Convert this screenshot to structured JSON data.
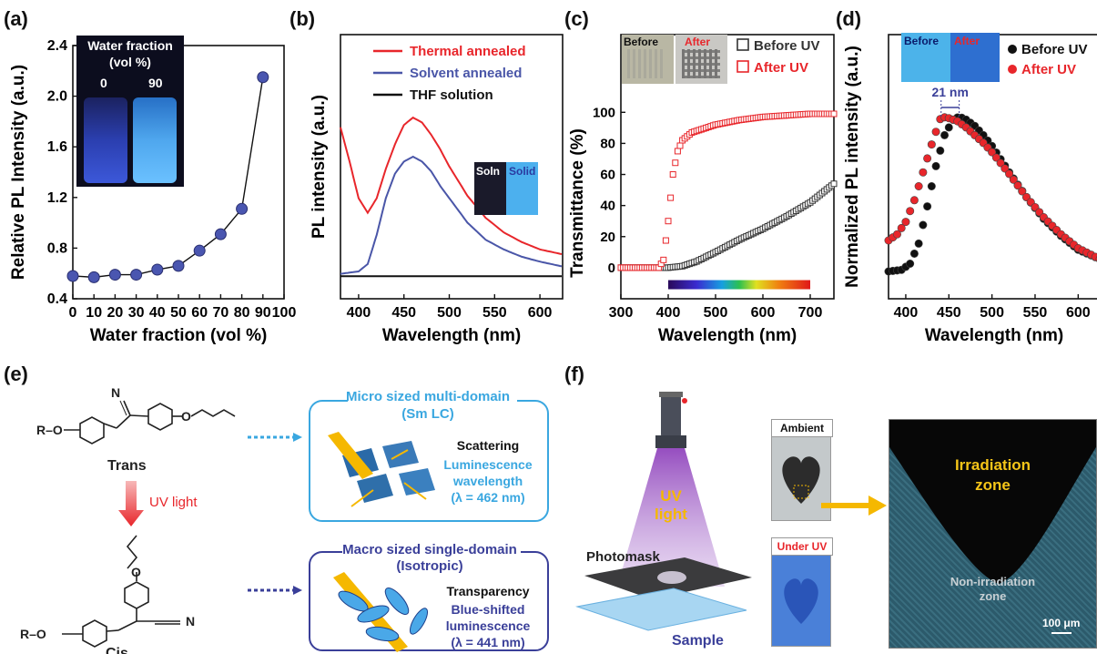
{
  "panel_labels": [
    "(a)",
    "(b)",
    "(c)",
    "(d)",
    "(e)",
    "(f)"
  ],
  "panel_a": {
    "inset_title_1": "Water fraction",
    "inset_title_2": "(vol %)",
    "inset_val_1": "0",
    "inset_val_2": "90"
  },
  "panel_b": {
    "inset_soln": "Soln",
    "inset_solid": "Solid"
  },
  "panel_c": {
    "inset_before": "Before",
    "inset_after": "After"
  },
  "panel_d": {
    "inset_before": "Before",
    "inset_after": "After",
    "annotation": "21 nm"
  },
  "panel_e": {
    "trans_label": "Trans",
    "cis_label": "Cis",
    "uv_label": "UV light",
    "ro_top": "R–O",
    "ro_bottom": "R–O",
    "n_top": "N",
    "n_bottom": "N",
    "o_top": "O",
    "o_bottom": "O",
    "micro_title_1": "Micro sized multi-domain",
    "micro_title_2": "(Sm LC)",
    "micro_prop": "Scattering",
    "micro_lum_1": "Luminescence",
    "micro_lum_2": "wavelength",
    "micro_lum_3": "(λ = 462 nm)",
    "macro_title_1": "Macro sized single-domain",
    "macro_title_2": "(Isotropic)",
    "macro_prop": "Transparency",
    "macro_lum_1": "Blue-shifted",
    "macro_lum_2": "luminescence",
    "macro_lum_3": "(λ = 441 nm)"
  },
  "panel_f": {
    "uv_1": "UV",
    "uv_2": "light",
    "photomask": "Photomask",
    "sample": "Sample",
    "ambient": "Ambient",
    "under_uv": "Under UV",
    "irr_1": "Irradiation",
    "irr_2": "zone",
    "non_irr_1": "Non-irradiation",
    "non_irr_2": "zone",
    "scale": "100 μm"
  },
  "colors": {
    "marker_blue": "#4a56b0",
    "red": "#e8262b",
    "blue_line": "#4a56a8",
    "cyan": "#3aa7e0",
    "navy": "#3a3f99",
    "arrow_yellow": "#f5b800"
  },
  "chart_data": [
    {
      "type": "scatter",
      "panel": "a",
      "xlabel": "Water fraction (vol %)",
      "ylabel": "Relative PL Intensity (a.u.)",
      "xlim": [
        0,
        100
      ],
      "ylim": [
        0.4,
        2.4
      ],
      "xticks": [
        0,
        10,
        20,
        30,
        40,
        50,
        60,
        70,
        80,
        90,
        100
      ],
      "yticks": [
        0.4,
        0.8,
        1.2,
        1.6,
        2.0,
        2.4
      ],
      "series": [
        {
          "x": [
            0,
            10,
            20,
            30,
            40,
            50,
            60,
            70,
            80,
            90
          ],
          "y": [
            0.58,
            0.57,
            0.59,
            0.59,
            0.63,
            0.66,
            0.78,
            0.91,
            1.11,
            2.15
          ]
        }
      ]
    },
    {
      "type": "line",
      "panel": "b",
      "xlabel": "Wavelength (nm)",
      "ylabel": "PL intensity (a.u.)",
      "xlim": [
        380,
        625
      ],
      "xticks": [
        400,
        450,
        500,
        550,
        600
      ],
      "series": [
        {
          "name": "Thermal annealed",
          "color": "#e8262b",
          "x": [
            380,
            390,
            400,
            410,
            420,
            430,
            440,
            450,
            460,
            470,
            480,
            490,
            500,
            520,
            540,
            560,
            580,
            600,
            625
          ],
          "y": [
            0.62,
            0.48,
            0.33,
            0.27,
            0.33,
            0.45,
            0.55,
            0.63,
            0.66,
            0.64,
            0.59,
            0.53,
            0.46,
            0.34,
            0.25,
            0.19,
            0.15,
            0.12,
            0.1
          ]
        },
        {
          "name": "Solvent annealed",
          "color": "#4a56a8",
          "x": [
            380,
            400,
            410,
            420,
            430,
            440,
            450,
            460,
            470,
            480,
            490,
            500,
            520,
            540,
            560,
            580,
            600,
            625
          ],
          "y": [
            0.02,
            0.03,
            0.06,
            0.18,
            0.33,
            0.43,
            0.48,
            0.5,
            0.48,
            0.44,
            0.38,
            0.33,
            0.23,
            0.16,
            0.12,
            0.09,
            0.07,
            0.05
          ]
        },
        {
          "name": "THF solution",
          "color": "#111111",
          "x": [
            380,
            625
          ],
          "y": [
            0.01,
            0.01
          ]
        }
      ]
    },
    {
      "type": "scatter",
      "panel": "c",
      "xlabel": "Wavelength (nm)",
      "ylabel": "Transmittance (%)",
      "xlim": [
        300,
        750
      ],
      "ylim": [
        -20,
        150
      ],
      "xticks": [
        300,
        400,
        500,
        600,
        700
      ],
      "yticks": [
        0,
        20,
        40,
        60,
        80,
        100
      ],
      "series": [
        {
          "name": "Before UV",
          "color": "#333333",
          "x": [
            300,
            350,
            400,
            430,
            460,
            500,
            550,
            600,
            650,
            700,
            750
          ],
          "y": [
            0,
            0,
            0,
            1,
            4,
            10,
            18,
            25,
            33,
            42,
            54
          ]
        },
        {
          "name": "After UV",
          "color": "#e8262b",
          "x": [
            300,
            350,
            380,
            390,
            400,
            410,
            420,
            430,
            450,
            500,
            550,
            600,
            650,
            700,
            750
          ],
          "y": [
            0,
            0,
            0,
            5,
            30,
            60,
            75,
            82,
            87,
            92,
            95,
            97,
            98,
            99,
            99
          ]
        }
      ]
    },
    {
      "type": "scatter",
      "panel": "d",
      "xlabel": "Wavelength (nm)",
      "ylabel": "Normalized PL intensity (a.u.)",
      "xlim": [
        380,
        625
      ],
      "ylim": [
        -0.05,
        1.05
      ],
      "xticks": [
        400,
        450,
        500,
        550,
        600
      ],
      "series": [
        {
          "name": "Before UV",
          "color": "#111111",
          "x": [
            380,
            395,
            405,
            415,
            425,
            435,
            445,
            455,
            462,
            470,
            480,
            490,
            500,
            520,
            540,
            560,
            580,
            600,
            625
          ],
          "y": [
            0.0,
            0.01,
            0.05,
            0.18,
            0.42,
            0.68,
            0.88,
            0.98,
            1.0,
            0.98,
            0.94,
            0.88,
            0.81,
            0.64,
            0.48,
            0.34,
            0.23,
            0.14,
            0.08
          ]
        },
        {
          "name": "After UV",
          "color": "#e8262b",
          "x": [
            380,
            390,
            400,
            410,
            420,
            430,
            441,
            450,
            460,
            470,
            480,
            490,
            500,
            520,
            540,
            560,
            580,
            600,
            625
          ],
          "y": [
            0.2,
            0.24,
            0.32,
            0.46,
            0.64,
            0.82,
            1.0,
            0.99,
            0.97,
            0.93,
            0.88,
            0.83,
            0.77,
            0.63,
            0.48,
            0.35,
            0.24,
            0.15,
            0.08
          ]
        }
      ]
    }
  ]
}
